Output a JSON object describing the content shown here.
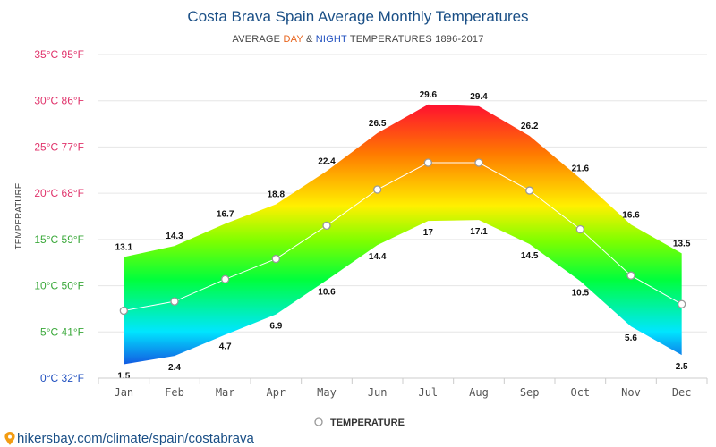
{
  "title": "Costa Brava Spain Average Monthly Temperatures",
  "subtitle": {
    "prefix": "AVERAGE ",
    "day": "DAY",
    "middle": " & ",
    "night": "NIGHT",
    "suffix": " TEMPERATURES 1896-2017"
  },
  "legend": {
    "label": "TEMPERATURE"
  },
  "source": "hikersbay.com/climate/spain/costabrava",
  "colors": {
    "title": "#1a4f86",
    "day_word": "#e8641c",
    "night_word": "#1f4fbf",
    "temperature_line": "#ffffff",
    "marker_stroke": "#999999"
  },
  "chart_data": {
    "type": "area",
    "title": "Costa Brava Spain Average Monthly Temperatures",
    "ylabel": "TEMPERATURE",
    "ylim": [
      0,
      35
    ],
    "grid": true,
    "legend_position": "bottom-center",
    "categories": [
      "Jan",
      "Feb",
      "Mar",
      "Apr",
      "May",
      "Jun",
      "Jul",
      "Aug",
      "Sep",
      "Oct",
      "Nov",
      "Dec"
    ],
    "y_ticks": [
      {
        "value": 0,
        "label": "0°C 32°F",
        "color": "#1f4fbf"
      },
      {
        "value": 5,
        "label": "5°C 41°F",
        "color": "#3aa83a"
      },
      {
        "value": 10,
        "label": "10°C 50°F",
        "color": "#3aa83a"
      },
      {
        "value": 15,
        "label": "15°C 59°F",
        "color": "#3aa83a"
      },
      {
        "value": 20,
        "label": "20°C 68°F",
        "color": "#e0336b"
      },
      {
        "value": 25,
        "label": "25°C 77°F",
        "color": "#e0336b"
      },
      {
        "value": 30,
        "label": "30°C 86°F",
        "color": "#e0336b"
      },
      {
        "value": 35,
        "label": "35°C 95°F",
        "color": "#e0336b"
      }
    ],
    "series": [
      {
        "values": [
          13.1,
          14.3,
          16.7,
          18.8,
          22.4,
          26.5,
          29.6,
          29.4,
          26.2,
          21.6,
          16.6,
          13.5
        ]
      },
      {
        "values": [
          1.5,
          2.4,
          4.7,
          6.9,
          10.6,
          14.4,
          17,
          17.1,
          14.5,
          10.5,
          5.6,
          2.5
        ]
      },
      {
        "name": "TEMPERATURE",
        "values": [
          7.3,
          8.3,
          10.7,
          12.9,
          16.5,
          20.4,
          23.3,
          23.3,
          20.3,
          16.1,
          11.1,
          8.0
        ]
      }
    ]
  }
}
